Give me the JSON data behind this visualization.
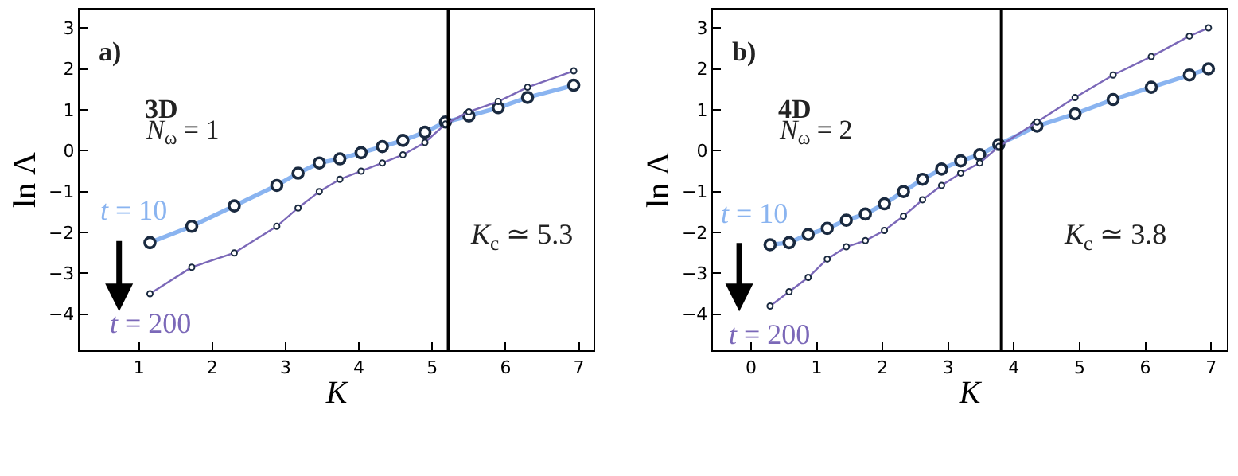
{
  "chart_data": [
    {
      "type": "line",
      "xlabel": "K",
      "ylabel": "ln Λ",
      "annotations": [
        "a)",
        "3D",
        "N$_{ω}$ = 1",
        "t = 10",
        "t = 200"
      ],
      "x": [
        1.15,
        1.72,
        2.3,
        2.88,
        3.17,
        3.46,
        3.74,
        4.03,
        4.32,
        4.6,
        4.9,
        5.18,
        5.5,
        5.9,
        6.3,
        6.93
      ],
      "series": [
        {
          "color": "#8ab4f0",
          "values": [
            -2.25,
            -1.85,
            -1.35,
            -0.85,
            -0.55,
            -0.3,
            -0.2,
            -0.05,
            0.1,
            0.25,
            0.45,
            0.7,
            0.85,
            1.05,
            1.3,
            1.6
          ]
        },
        {
          "color": "#7b68b8",
          "values": [
            -3.5,
            -2.85,
            -2.5,
            -1.85,
            -1.4,
            -1.0,
            -0.7,
            -0.5,
            -0.3,
            -0.1,
            0.2,
            0.65,
            0.95,
            1.2,
            1.55,
            1.95
          ]
        }
      ],
      "xlim": [
        0.19,
        7.2
      ],
      "ylim": [
        -4.88,
        3.45
      ],
      "xticks": [
        1,
        2,
        3,
        4,
        5,
        6,
        7
      ],
      "yticks": [
        -4,
        -3,
        -2,
        -1,
        0,
        1,
        2,
        3
      ],
      "ref_lines": [
        {
          "axis": "x",
          "value": 5.22,
          "label": "K$_{c}$ ≃ 5.3",
          "color": "#000000"
        }
      ],
      "marker": "circle"
    },
    {
      "type": "line",
      "xlabel": "K",
      "ylabel": "ln Λ",
      "annotations": [
        "b)",
        "4D",
        "N$_{ω}$ = 2",
        "t = 10",
        "t = 200"
      ],
      "x": [
        0.29,
        0.58,
        0.87,
        1.16,
        1.45,
        1.74,
        2.03,
        2.32,
        2.61,
        2.9,
        3.19,
        3.48,
        3.77,
        4.35,
        4.93,
        5.51,
        6.09,
        6.67,
        6.96
      ],
      "series": [
        {
          "color": "#8ab4f0",
          "values": [
            -2.3,
            -2.25,
            -2.05,
            -1.9,
            -1.7,
            -1.55,
            -1.3,
            -1.0,
            -0.7,
            -0.45,
            -0.25,
            -0.1,
            0.15,
            0.6,
            0.9,
            1.25,
            1.55,
            1.85,
            2.0
          ]
        },
        {
          "color": "#7b68b8",
          "values": [
            -3.8,
            -3.45,
            -3.1,
            -2.65,
            -2.35,
            -2.2,
            -1.95,
            -1.6,
            -1.2,
            -0.85,
            -0.55,
            -0.3,
            0.1,
            0.7,
            1.3,
            1.85,
            2.3,
            2.8,
            3.0
          ]
        }
      ],
      "xlim": [
        -0.58,
        7.24
      ],
      "ylim": [
        -4.88,
        3.45
      ],
      "xticks": [
        0,
        1,
        2,
        3,
        4,
        5,
        6,
        7
      ],
      "yticks": [
        -4,
        -3,
        -2,
        -1,
        0,
        1,
        2,
        3
      ],
      "ref_lines": [
        {
          "axis": "x",
          "value": 3.81,
          "label": "K$_{c}$ ≃ 3.8",
          "color": "#000000"
        }
      ],
      "marker": "circle"
    }
  ]
}
